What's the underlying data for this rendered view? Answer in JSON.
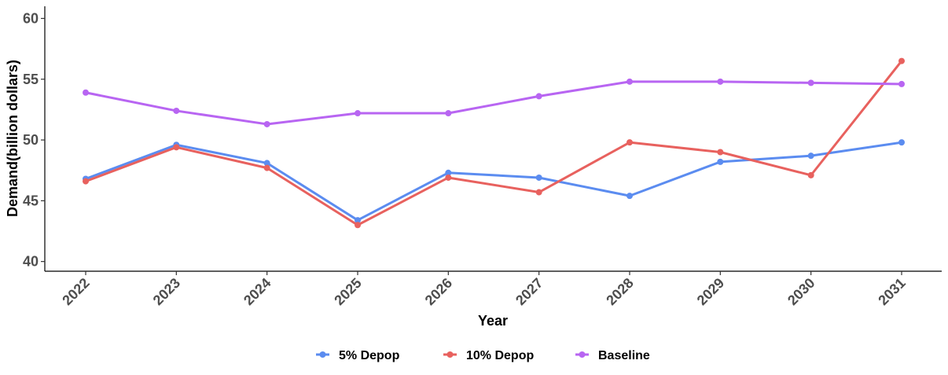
{
  "chart_data": {
    "type": "line",
    "title": "",
    "xlabel": "Year",
    "ylabel": "Demand(billion dollars)",
    "categories": [
      "2022",
      "2023",
      "2024",
      "2025",
      "2026",
      "2027",
      "2028",
      "2029",
      "2030",
      "2031"
    ],
    "ylim": [
      39.2,
      61
    ],
    "yticks": [
      40,
      45,
      50,
      55,
      60
    ],
    "grid": false,
    "legend_position": "bottom",
    "series": [
      {
        "name": "5% Depop",
        "color": "#5b8cf0",
        "values": [
          46.8,
          49.6,
          48.1,
          43.4,
          47.3,
          46.9,
          45.4,
          48.2,
          48.7,
          49.8
        ]
      },
      {
        "name": "10% Depop",
        "color": "#e8615e",
        "values": [
          46.6,
          49.4,
          47.7,
          43.0,
          46.9,
          45.7,
          49.8,
          49.0,
          47.1,
          56.5
        ]
      },
      {
        "name": "Baseline",
        "color": "#b865f2",
        "values": [
          53.9,
          52.4,
          51.3,
          52.2,
          52.2,
          53.6,
          54.8,
          54.8,
          54.7,
          54.6
        ]
      }
    ]
  }
}
